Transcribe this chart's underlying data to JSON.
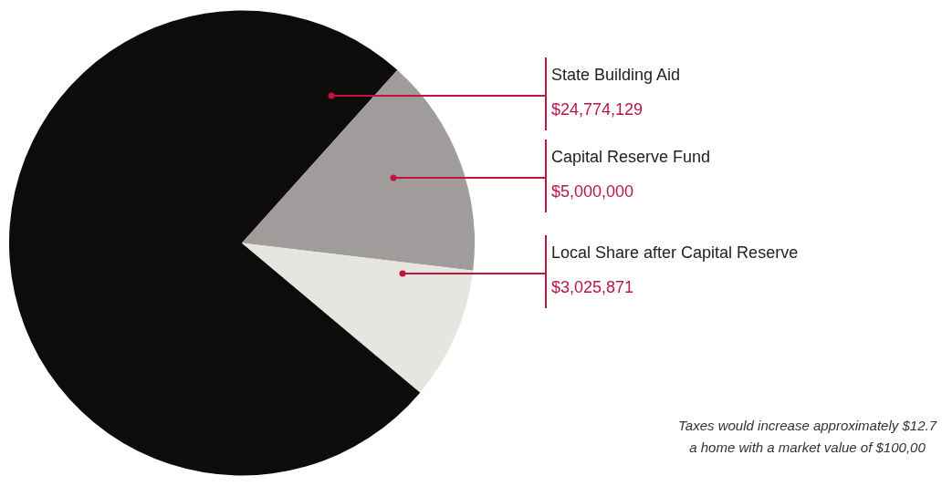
{
  "chart_data": {
    "type": "pie",
    "categories": [
      "State Building Aid",
      "Capital Reserve Fund",
      "Local Share after Capital Reserve"
    ],
    "values": [
      24774129,
      5000000,
      3025871
    ],
    "value_labels": [
      "$24,774,129",
      "$5,000,000",
      "$3,025,871"
    ],
    "colors": [
      "#0d0b0c",
      "#a09c9b",
      "#e6e6e0"
    ],
    "legend": false,
    "annotations": [
      "Taxes would increase approximately $12.7",
      "a home with a market value of $100,00"
    ]
  }
}
